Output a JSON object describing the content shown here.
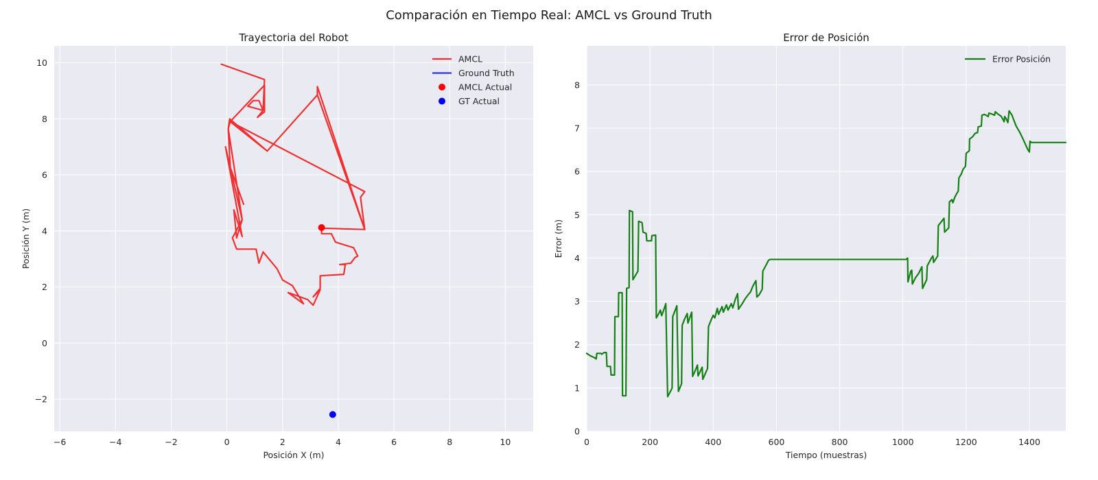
{
  "figure": {
    "title": "Comparación en Tiempo Real: AMCL vs Ground Truth"
  },
  "colors": {
    "amcl": "#f03030",
    "ground_truth": "#2a2af0",
    "amcl_point": "#ff0000",
    "gt_point": "#0000ff",
    "error": "#138013",
    "plot_bg": "#eaeaf2"
  },
  "chart_data": [
    {
      "type": "line",
      "title": "Trayectoria del Robot",
      "xlabel": "Posición X (m)",
      "ylabel": "Posición Y (m)",
      "xlim": [
        -6.2,
        11.0
      ],
      "ylim": [
        -3.15,
        10.6
      ],
      "xticks": [
        -6,
        -4,
        -2,
        0,
        2,
        4,
        6,
        8,
        10
      ],
      "yticks": [
        -2,
        0,
        2,
        4,
        6,
        8,
        10
      ],
      "grid": true,
      "legend_position": "top-right",
      "series": [
        {
          "name": "AMCL",
          "color": "#f03030",
          "points": [
            [
              0.6,
              4.95
            ],
            [
              0.12,
              6.27
            ],
            [
              0.55,
              4.4
            ],
            [
              0.2,
              3.75
            ],
            [
              0.35,
              3.35
            ],
            [
              1.05,
              3.35
            ],
            [
              1.15,
              2.85
            ],
            [
              1.3,
              3.25
            ],
            [
              1.8,
              2.65
            ],
            [
              2.0,
              2.25
            ],
            [
              2.35,
              2.05
            ],
            [
              2.75,
              1.4
            ],
            [
              2.2,
              1.8
            ],
            [
              2.9,
              1.55
            ],
            [
              3.1,
              1.35
            ],
            [
              3.35,
              1.9
            ],
            [
              3.1,
              1.65
            ],
            [
              3.35,
              1.95
            ],
            [
              3.35,
              2.4
            ],
            [
              4.2,
              2.45
            ],
            [
              4.25,
              2.8
            ],
            [
              4.05,
              2.8
            ],
            [
              4.45,
              2.85
            ],
            [
              4.6,
              3.05
            ],
            [
              4.7,
              3.1
            ],
            [
              4.55,
              3.4
            ],
            [
              3.9,
              3.6
            ],
            [
              3.75,
              3.9
            ],
            [
              3.4,
              3.9
            ],
            [
              3.4,
              4.2
            ],
            [
              3.4,
              4.1
            ],
            [
              4.95,
              4.05
            ],
            [
              4.8,
              5.2
            ],
            [
              4.95,
              5.4
            ],
            [
              0.12,
              7.9
            ],
            [
              0.05,
              7.65
            ],
            [
              0.55,
              4.4
            ],
            [
              0.35,
              3.75
            ],
            [
              0.25,
              4.75
            ],
            [
              0.55,
              3.8
            ],
            [
              -0.05,
              7.0
            ],
            [
              0.12,
              6.27
            ],
            [
              0.05,
              7.65
            ],
            [
              0.1,
              8.0
            ],
            [
              1.45,
              6.85
            ],
            [
              3.25,
              8.85
            ],
            [
              4.95,
              4.05
            ],
            [
              3.25,
              9.15
            ],
            [
              3.25,
              8.85
            ],
            [
              1.45,
              6.85
            ],
            [
              0.12,
              7.9
            ],
            [
              1.35,
              9.2
            ],
            [
              1.35,
              8.5
            ],
            [
              1.35,
              8.25
            ],
            [
              1.1,
              8.05
            ],
            [
              1.3,
              8.3
            ],
            [
              1.15,
              8.65
            ],
            [
              0.95,
              8.65
            ],
            [
              0.75,
              8.45
            ],
            [
              1.3,
              8.3
            ],
            [
              1.35,
              9.4
            ],
            [
              -0.2,
              9.95
            ]
          ]
        },
        {
          "name": "Ground Truth",
          "color": "#2a2af0",
          "points": []
        },
        {
          "name": "AMCL Actual",
          "color": "#ff0000",
          "points": [
            [
              3.4,
              4.12
            ]
          ],
          "marker": "circle"
        },
        {
          "name": "GT Actual",
          "color": "#0000ff",
          "points": [
            [
              3.8,
              -2.55
            ]
          ],
          "marker": "circle"
        }
      ]
    },
    {
      "type": "line",
      "title": "Error de Posición",
      "xlabel": "Tiempo (muestras)",
      "ylabel": "Error (m)",
      "xlim": [
        0,
        1515
      ],
      "ylim": [
        0,
        8.9
      ],
      "xticks": [
        0,
        200,
        400,
        600,
        800,
        1000,
        1200,
        1400
      ],
      "yticks": [
        0,
        1,
        2,
        3,
        4,
        5,
        6,
        7,
        8
      ],
      "grid": true,
      "legend_position": "top-right",
      "series": [
        {
          "name": "Error Posición",
          "color": "#138013",
          "points": [
            [
              0,
              1.8
            ],
            [
              10,
              1.75
            ],
            [
              25,
              1.7
            ],
            [
              30,
              1.67
            ],
            [
              32,
              1.8
            ],
            [
              45,
              1.8
            ],
            [
              47,
              1.78
            ],
            [
              55,
              1.82
            ],
            [
              62,
              1.82
            ],
            [
              64,
              1.5
            ],
            [
              75,
              1.5
            ],
            [
              77,
              1.3
            ],
            [
              88,
              1.3
            ],
            [
              89,
              2.65
            ],
            [
              100,
              2.65
            ],
            [
              101,
              3.2
            ],
            [
              112,
              3.2
            ],
            [
              113,
              0.82
            ],
            [
              124,
              0.82
            ],
            [
              126,
              3.3
            ],
            [
              134,
              3.32
            ],
            [
              135,
              5.1
            ],
            [
              145,
              5.07
            ],
            [
              146,
              3.5
            ],
            [
              162,
              3.7
            ],
            [
              164,
              4.85
            ],
            [
              175,
              4.82
            ],
            [
              178,
              4.6
            ],
            [
              188,
              4.57
            ],
            [
              190,
              4.4
            ],
            [
              205,
              4.4
            ],
            [
              206,
              4.52
            ],
            [
              218,
              4.53
            ],
            [
              220,
              2.62
            ],
            [
              228,
              2.72
            ],
            [
              233,
              2.8
            ],
            [
              237,
              2.67
            ],
            [
              248,
              2.9
            ],
            [
              250,
              2.95
            ],
            [
              256,
              0.8
            ],
            [
              263,
              0.9
            ],
            [
              270,
              1.0
            ],
            [
              272,
              2.65
            ],
            [
              280,
              2.8
            ],
            [
              285,
              2.9
            ],
            [
              290,
              0.92
            ],
            [
              300,
              1.1
            ],
            [
              302,
              2.45
            ],
            [
              310,
              2.6
            ],
            [
              318,
              2.72
            ],
            [
              320,
              2.5
            ],
            [
              332,
              2.75
            ],
            [
              335,
              1.27
            ],
            [
              346,
              1.45
            ],
            [
              350,
              1.53
            ],
            [
              352,
              1.28
            ],
            [
              365,
              1.48
            ],
            [
              367,
              1.2
            ],
            [
              382,
              1.45
            ],
            [
              385,
              2.42
            ],
            [
              395,
              2.6
            ],
            [
              400,
              2.68
            ],
            [
              405,
              2.62
            ],
            [
              413,
              2.84
            ],
            [
              417,
              2.7
            ],
            [
              428,
              2.88
            ],
            [
              432,
              2.75
            ],
            [
              442,
              2.92
            ],
            [
              447,
              2.8
            ],
            [
              457,
              2.95
            ],
            [
              462,
              2.85
            ],
            [
              470,
              3.05
            ],
            [
              474,
              3.12
            ],
            [
              477,
              3.18
            ],
            [
              480,
              2.82
            ],
            [
              492,
              2.95
            ],
            [
              500,
              3.05
            ],
            [
              510,
              3.15
            ],
            [
              518,
              3.22
            ],
            [
              525,
              3.35
            ],
            [
              535,
              3.48
            ],
            [
              538,
              3.1
            ],
            [
              545,
              3.15
            ],
            [
              555,
              3.28
            ],
            [
              557,
              3.7
            ],
            [
              568,
              3.85
            ],
            [
              575,
              3.95
            ],
            [
              580,
              3.97
            ],
            [
              1010,
              3.97
            ],
            [
              1015,
              4.0
            ],
            [
              1016,
              3.45
            ],
            [
              1025,
              3.7
            ],
            [
              1028,
              3.72
            ],
            [
              1030,
              3.4
            ],
            [
              1040,
              3.55
            ],
            [
              1050,
              3.65
            ],
            [
              1060,
              3.8
            ],
            [
              1062,
              3.3
            ],
            [
              1075,
              3.5
            ],
            [
              1077,
              3.82
            ],
            [
              1090,
              4.0
            ],
            [
              1095,
              4.05
            ],
            [
              1097,
              3.9
            ],
            [
              1110,
              4.05
            ],
            [
              1112,
              4.75
            ],
            [
              1130,
              4.92
            ],
            [
              1132,
              4.6
            ],
            [
              1145,
              4.7
            ],
            [
              1147,
              5.3
            ],
            [
              1155,
              5.35
            ],
            [
              1158,
              5.28
            ],
            [
              1165,
              5.42
            ],
            [
              1175,
              5.55
            ],
            [
              1177,
              5.85
            ],
            [
              1185,
              5.95
            ],
            [
              1190,
              6.05
            ],
            [
              1198,
              6.12
            ],
            [
              1200,
              6.42
            ],
            [
              1210,
              6.48
            ],
            [
              1211,
              6.75
            ],
            [
              1220,
              6.8
            ],
            [
              1228,
              6.88
            ],
            [
              1236,
              6.9
            ],
            [
              1238,
              7.03
            ],
            [
              1248,
              7.05
            ],
            [
              1250,
              7.3
            ],
            [
              1258,
              7.32
            ],
            [
              1270,
              7.27
            ],
            [
              1272,
              7.35
            ],
            [
              1280,
              7.33
            ],
            [
              1290,
              7.3
            ],
            [
              1292,
              7.38
            ],
            [
              1300,
              7.33
            ],
            [
              1310,
              7.28
            ],
            [
              1315,
              7.22
            ],
            [
              1320,
              7.15
            ],
            [
              1322,
              7.27
            ],
            [
              1328,
              7.2
            ],
            [
              1332,
              7.13
            ],
            [
              1336,
              7.4
            ],
            [
              1345,
              7.3
            ],
            [
              1350,
              7.2
            ],
            [
              1358,
              7.05
            ],
            [
              1370,
              6.9
            ],
            [
              1380,
              6.75
            ],
            [
              1386,
              6.65
            ],
            [
              1394,
              6.52
            ],
            [
              1400,
              6.45
            ],
            [
              1402,
              6.7
            ],
            [
              1406,
              6.67
            ],
            [
              1515,
              6.67
            ]
          ]
        }
      ]
    }
  ]
}
